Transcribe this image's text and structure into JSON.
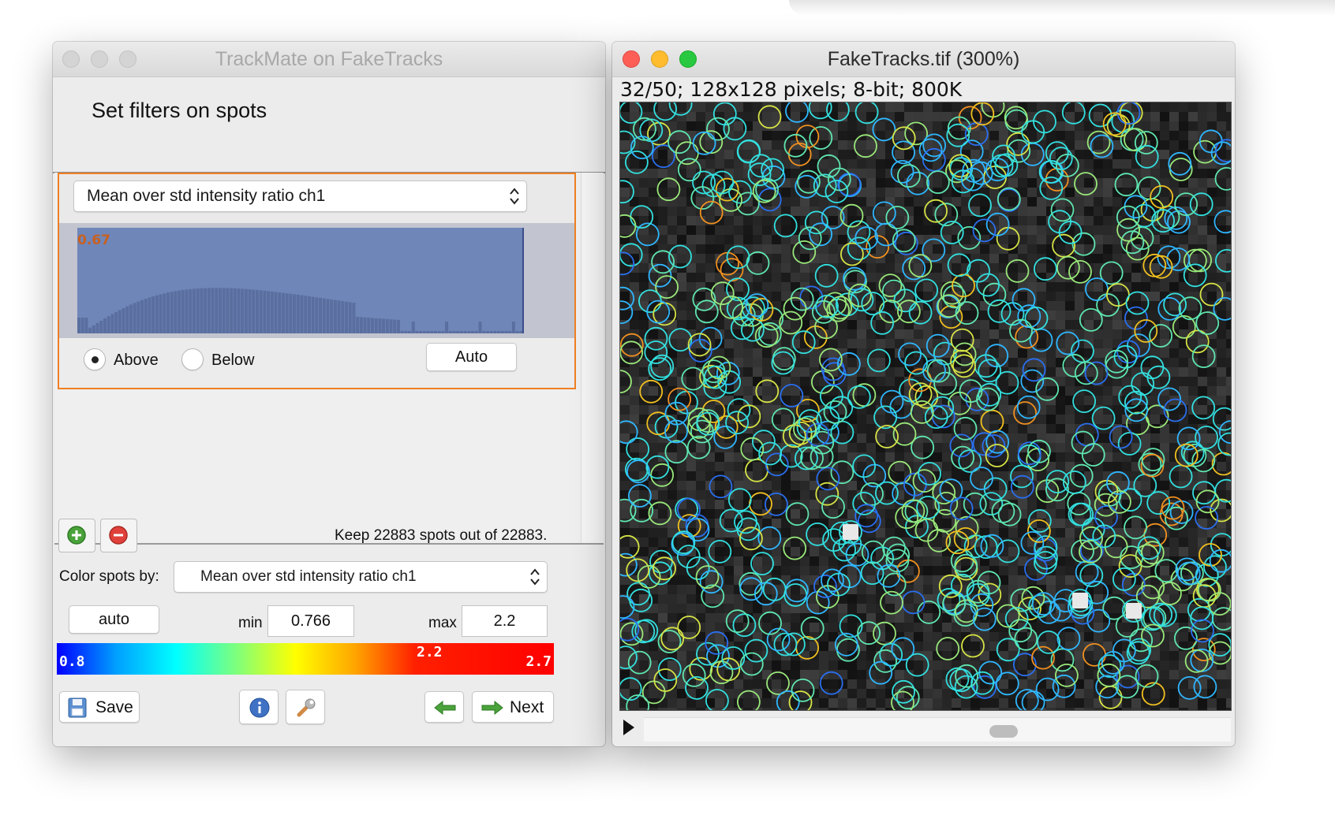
{
  "trackmate": {
    "window_title": "TrackMate on FakeTracks",
    "header_title": "Set filters on spots",
    "filter": {
      "feature": "Mean over std intensity ratio ch1",
      "threshold_label": "0.67",
      "above_label": "Above",
      "below_label": "Below",
      "selected": "Above",
      "auto_label": "Auto"
    },
    "keep_text": "Keep 22883 spots out of  22883.",
    "color_by_label": "Color spots by:",
    "color_by_value": "Mean over std intensity ratio ch1",
    "auto_button": "auto",
    "min_label": "min",
    "min_value": "0.766",
    "max_label": "max",
    "max_value": "2.2",
    "colorbar": {
      "left": "0.8",
      "mid": "2.2",
      "right": "2.7"
    },
    "save_label": "Save",
    "next_label": "Next",
    "icons": {
      "add": "add-icon",
      "remove": "remove-icon",
      "info": "info-icon",
      "wrench": "wrench-icon",
      "back": "back-arrow-icon",
      "next": "next-arrow-icon",
      "save": "save-icon"
    }
  },
  "image_window": {
    "title": "FakeTracks.tif (300%)",
    "info": "32/50; 128x128 pixels; 8-bit; 800K"
  },
  "colors": {
    "filter_border": "#f07f22",
    "histogram_fill": "#6f86b8",
    "spot_palette": [
      "#2a6ff0",
      "#2fb7ff",
      "#33e0e0",
      "#5fe6b0",
      "#9ae87a",
      "#d6e445",
      "#f0c020",
      "#f09020"
    ]
  }
}
